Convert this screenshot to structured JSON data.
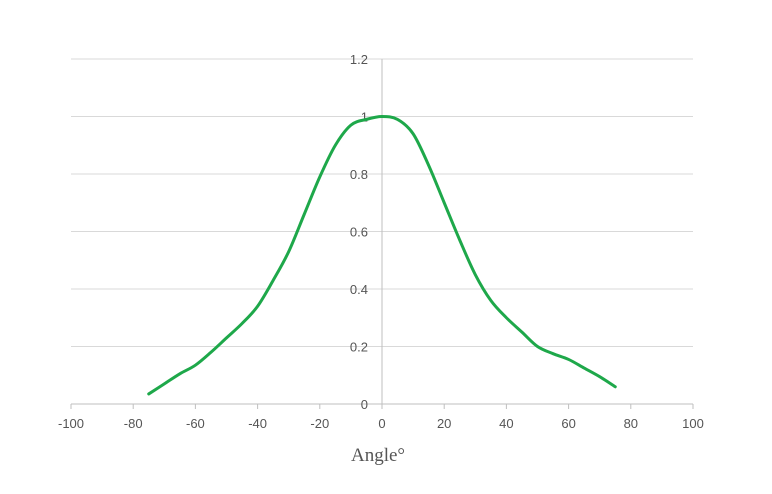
{
  "chart_data": {
    "type": "line",
    "title": "",
    "xlabel": "Angle°",
    "ylabel": "",
    "xlim": [
      -100,
      100
    ],
    "ylim": [
      0,
      1.2
    ],
    "x_ticks": [
      "-100",
      "-80",
      "-60",
      "-40",
      "-20",
      "0",
      "20",
      "40",
      "60",
      "80",
      "100"
    ],
    "y_ticks": [
      "0",
      "0.2",
      "0.4",
      "0.6",
      "0.8",
      "1",
      "1.2"
    ],
    "grid": "horizontal",
    "legend": "none",
    "series": [
      {
        "color": "#1ea84a",
        "x": [
          -75,
          -70,
          -65,
          -60,
          -55,
          -50,
          -45,
          -40,
          -35,
          -30,
          -25,
          -20,
          -15,
          -10,
          -5,
          0,
          5,
          10,
          15,
          20,
          25,
          30,
          35,
          40,
          45,
          50,
          55,
          60,
          65,
          70,
          75
        ],
        "y": [
          0.035,
          0.07,
          0.105,
          0.135,
          0.18,
          0.23,
          0.28,
          0.34,
          0.43,
          0.53,
          0.66,
          0.79,
          0.9,
          0.97,
          0.99,
          1.0,
          0.99,
          0.94,
          0.83,
          0.7,
          0.57,
          0.45,
          0.36,
          0.3,
          0.25,
          0.2,
          0.175,
          0.155,
          0.125,
          0.095,
          0.06
        ]
      }
    ]
  }
}
